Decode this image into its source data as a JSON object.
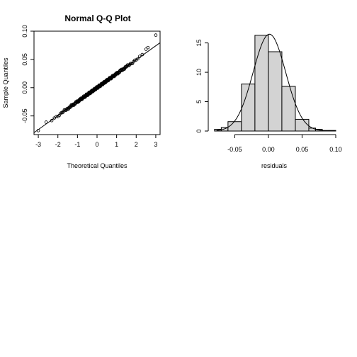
{
  "chart_data": [
    {
      "type": "scatter",
      "title": "Normal Q-Q Plot",
      "xlabel": "Theoretical Quantiles",
      "ylabel": "Sample Quantiles",
      "xlim": [
        -3.22,
        3.22
      ],
      "ylim": [
        -0.083,
        0.1
      ],
      "x_ticks": [
        -3,
        -2,
        -1,
        0,
        1,
        2,
        3
      ],
      "x_tick_labels": [
        "-3",
        "-2",
        "-1",
        "0",
        "1",
        "2",
        "3"
      ],
      "y_ticks": [
        -0.05,
        0,
        0.05,
        0.1
      ],
      "y_tick_labels": [
        "-0.05",
        "0.00",
        "0.05",
        "0.10"
      ],
      "points": {
        "n": 240,
        "mean": 0,
        "sd": 0.0247
      },
      "tail_points": [
        {
          "x": -3.0,
          "y": -0.076
        },
        {
          "x": -2.6,
          "y": -0.061
        },
        {
          "x": 2.5,
          "y": 0.068
        },
        {
          "x": 2.6,
          "y": 0.071
        },
        {
          "x": 3.0,
          "y": 0.093
        }
      ],
      "reference_line": {
        "intercept": 0.0,
        "slope": 0.0247
      },
      "grid": false
    },
    {
      "type": "bar",
      "xlabel": "residuals",
      "ylabel": "",
      "xlim": [
        -0.083,
        0.1
      ],
      "ylim": [
        0,
        17
      ],
      "x_ticks": [
        -0.05,
        0,
        0.05,
        0.1
      ],
      "x_tick_labels": [
        "-0.05",
        "0.00",
        "0.05",
        "0.10"
      ],
      "y_ticks": [
        0,
        5,
        10,
        15
      ],
      "y_tick_labels": [
        "0",
        "5",
        "10",
        "15"
      ],
      "bins": [
        {
          "from": -0.08,
          "to": -0.07,
          "density": 0.3
        },
        {
          "from": -0.07,
          "to": -0.06,
          "density": 0.6
        },
        {
          "from": -0.06,
          "to": -0.04,
          "density": 1.6
        },
        {
          "from": -0.04,
          "to": -0.02,
          "density": 8.0
        },
        {
          "from": -0.02,
          "to": 0.0,
          "density": 16.3
        },
        {
          "from": 0.0,
          "to": 0.02,
          "density": 13.5
        },
        {
          "from": 0.02,
          "to": 0.04,
          "density": 7.6
        },
        {
          "from": 0.04,
          "to": 0.06,
          "density": 2.0
        },
        {
          "from": 0.06,
          "to": 0.07,
          "density": 0.5
        },
        {
          "from": 0.07,
          "to": 0.08,
          "density": 0.3
        },
        {
          "from": 0.08,
          "to": 0.09,
          "density": 0.1
        },
        {
          "from": 0.09,
          "to": 0.1,
          "density": 0.1
        }
      ],
      "density_curve": {
        "mean": 0.0015,
        "sd": 0.0242
      },
      "grid": false
    }
  ]
}
